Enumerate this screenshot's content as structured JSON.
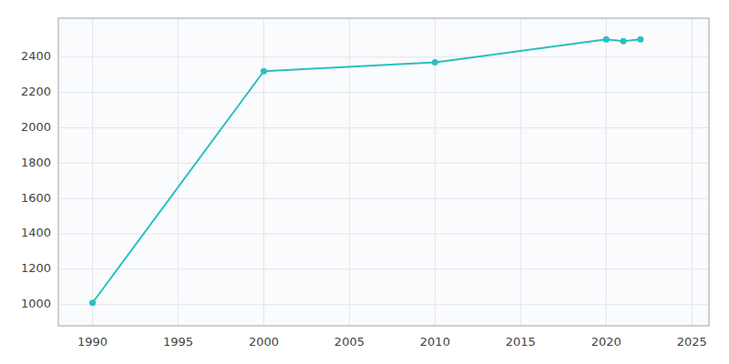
{
  "chart_data": {
    "type": "line",
    "x": [
      1990,
      2000,
      2010,
      2020,
      2021,
      2022
    ],
    "values": [
      1010,
      2320,
      2370,
      2500,
      2490,
      2500
    ],
    "color": "#2abfbf",
    "marker": "circle",
    "xlim": [
      1988,
      2026
    ],
    "ylim": [
      880,
      2620
    ],
    "xticks": [
      1990,
      1995,
      2000,
      2005,
      2010,
      2015,
      2020,
      2025
    ],
    "yticks": [
      1000,
      1200,
      1400,
      1600,
      1800,
      2000,
      2200,
      2400
    ],
    "grid": true
  }
}
